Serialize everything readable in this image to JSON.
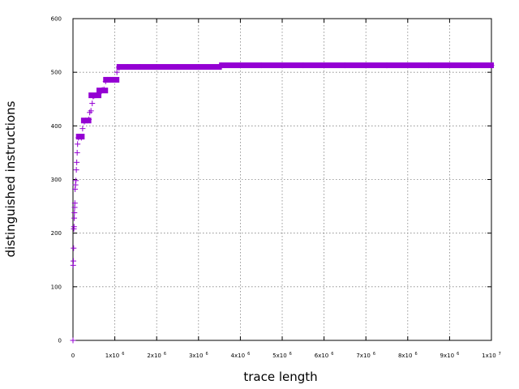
{
  "chart_data": {
    "type": "scatter",
    "xlabel": "trace length",
    "ylabel": "distinguished instructions",
    "xlim": [
      0,
      10000000
    ],
    "ylim": [
      0,
      600
    ],
    "grid": true,
    "marker": "+",
    "color": "#9400d3",
    "x_ticks": [
      {
        "value": 0,
        "label": "0",
        "exp": ""
      },
      {
        "value": 1000000,
        "label": "1x10",
        "exp": "6"
      },
      {
        "value": 2000000,
        "label": "2x10",
        "exp": "6"
      },
      {
        "value": 3000000,
        "label": "3x10",
        "exp": "6"
      },
      {
        "value": 4000000,
        "label": "4x10",
        "exp": "6"
      },
      {
        "value": 5000000,
        "label": "5x10",
        "exp": "6"
      },
      {
        "value": 6000000,
        "label": "6x10",
        "exp": "6"
      },
      {
        "value": 7000000,
        "label": "7x10",
        "exp": "6"
      },
      {
        "value": 8000000,
        "label": "8x10",
        "exp": "6"
      },
      {
        "value": 9000000,
        "label": "9x10",
        "exp": "6"
      },
      {
        "value": 10000000,
        "label": "1x10",
        "exp": "7"
      }
    ],
    "y_ticks": [
      {
        "value": 0,
        "label": "0"
      },
      {
        "value": 100,
        "label": "100"
      },
      {
        "value": 200,
        "label": "200"
      },
      {
        "value": 300,
        "label": "300"
      },
      {
        "value": 400,
        "label": "400"
      },
      {
        "value": 500,
        "label": "500"
      },
      {
        "value": 600,
        "label": "600"
      }
    ],
    "points": [
      [
        0,
        0
      ],
      [
        5000,
        140
      ],
      [
        10000,
        148
      ],
      [
        15000,
        172
      ],
      [
        20000,
        208
      ],
      [
        25000,
        212
      ],
      [
        30000,
        228
      ],
      [
        35000,
        238
      ],
      [
        40000,
        248
      ],
      [
        45000,
        256
      ],
      [
        50000,
        282
      ],
      [
        60000,
        290
      ],
      [
        70000,
        298
      ],
      [
        80000,
        318
      ],
      [
        90000,
        332
      ],
      [
        100000,
        350
      ],
      [
        110000,
        366
      ],
      [
        130000,
        378
      ],
      [
        150000,
        380
      ],
      [
        180000,
        380
      ],
      [
        200000,
        378
      ],
      [
        230000,
        395
      ],
      [
        270000,
        408
      ],
      [
        300000,
        410
      ],
      [
        340000,
        410
      ],
      [
        380000,
        412
      ],
      [
        400000,
        425
      ],
      [
        430000,
        428
      ],
      [
        460000,
        442
      ],
      [
        480000,
        455
      ],
      [
        500000,
        456
      ],
      [
        540000,
        457
      ],
      [
        580000,
        458
      ],
      [
        620000,
        460
      ],
      [
        660000,
        465
      ],
      [
        700000,
        467
      ],
      [
        740000,
        468
      ],
      [
        780000,
        483
      ],
      [
        820000,
        486
      ],
      [
        860000,
        486
      ],
      [
        900000,
        486
      ],
      [
        950000,
        486
      ],
      [
        1000000,
        486
      ],
      [
        1050000,
        500
      ],
      [
        1100000,
        508
      ],
      [
        1100000,
        510
      ],
      [
        1300000,
        510
      ],
      [
        1600000,
        510
      ],
      [
        2000000,
        510
      ],
      [
        2500000,
        510
      ],
      [
        3000000,
        510
      ],
      [
        3500000,
        510
      ],
      [
        3550000,
        513
      ],
      [
        4000000,
        513
      ],
      [
        4500000,
        513
      ],
      [
        5000000,
        513
      ],
      [
        5500000,
        513
      ],
      [
        6000000,
        513
      ],
      [
        6500000,
        513
      ],
      [
        7000000,
        513
      ],
      [
        7500000,
        513
      ],
      [
        8000000,
        513
      ],
      [
        8500000,
        513
      ],
      [
        9000000,
        513
      ],
      [
        9500000,
        513
      ],
      [
        10000000,
        513
      ]
    ],
    "segments": [
      {
        "x_start": 130000,
        "x_end": 220000,
        "y": 380
      },
      {
        "x_start": 250000,
        "x_end": 380000,
        "y": 410
      },
      {
        "x_start": 430000,
        "x_end": 620000,
        "y": 457
      },
      {
        "x_start": 620000,
        "x_end": 780000,
        "y": 466
      },
      {
        "x_start": 780000,
        "x_end": 1050000,
        "y": 486
      },
      {
        "x_start": 1100000,
        "x_end": 3500000,
        "y": 510
      },
      {
        "x_start": 3550000,
        "x_end": 10000000,
        "y": 513
      }
    ]
  }
}
